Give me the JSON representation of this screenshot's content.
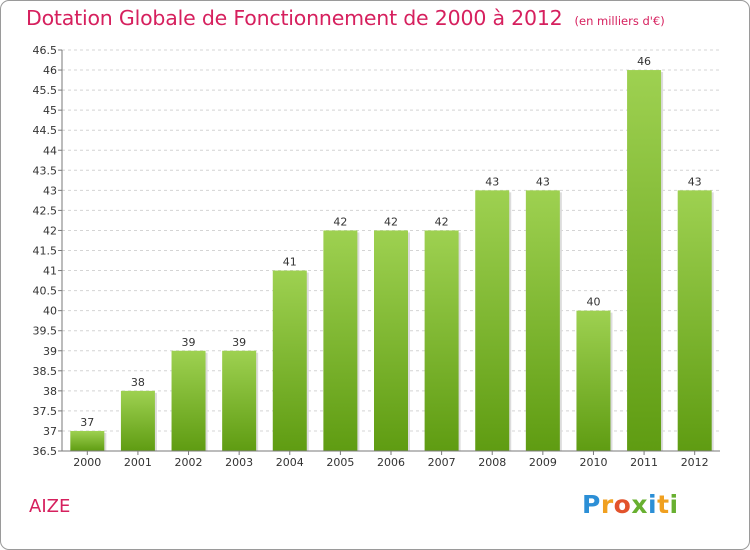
{
  "header": {
    "title": "Dotation Globale de Fonctionnement de 2000 à 2012",
    "unit": "(en milliers d'€)"
  },
  "footer": {
    "commune": "AIZE",
    "logo": [
      "P",
      "r",
      "o",
      "x",
      "i",
      "t",
      "i"
    ]
  },
  "colors": {
    "title": "#d6205e",
    "bar_light": "#9ed151",
    "bar_dark": "#5f9c12",
    "grid": "#d4d4d4",
    "axis": "#7a7a7a"
  },
  "chart_data": {
    "type": "bar",
    "title": "Dotation Globale de Fonctionnement de 2000 à 2012",
    "subtitle": "(en milliers d'€)",
    "xlabel": "",
    "ylabel": "",
    "categories": [
      "2000",
      "2001",
      "2002",
      "2003",
      "2004",
      "2005",
      "2006",
      "2007",
      "2008",
      "2009",
      "2010",
      "2011",
      "2012"
    ],
    "values": [
      37,
      38,
      39,
      39,
      41,
      42,
      42,
      42,
      43,
      43,
      40,
      46,
      43
    ],
    "data_labels": [
      "37",
      "38",
      "39",
      "39",
      "41",
      "42",
      "42",
      "42",
      "43",
      "43",
      "40",
      "46",
      "43"
    ],
    "ylim": [
      36.5,
      46.5
    ],
    "yticks": [
      "36.5",
      "37",
      "37.5",
      "38",
      "38.5",
      "39",
      "39.5",
      "40",
      "40.5",
      "41",
      "41.5",
      "42",
      "42.5",
      "43",
      "43.5",
      "44",
      "44.5",
      "45",
      "45.5",
      "46",
      "46.5"
    ],
    "grid": true,
    "legend": "none"
  }
}
